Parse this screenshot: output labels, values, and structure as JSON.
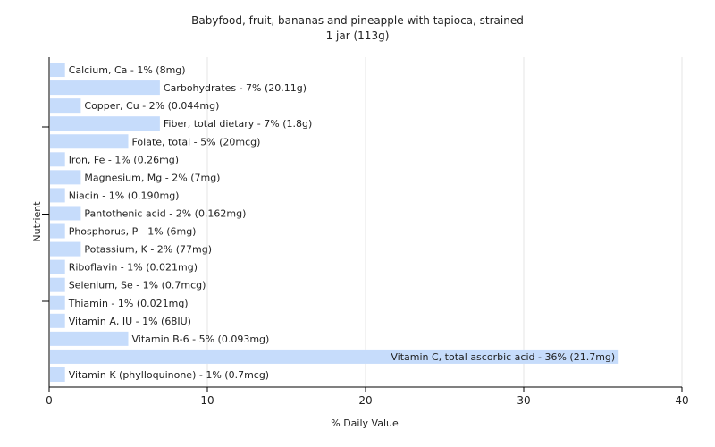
{
  "chart_data": {
    "type": "bar",
    "orientation": "horizontal",
    "title": "Babyfood, fruit, bananas and pineapple with tapioca, strained",
    "subtitle": "1 jar (113g)",
    "xlabel": "% Daily Value",
    "ylabel": "Nutrient",
    "xlim": [
      0,
      40
    ],
    "xticks": [
      "0",
      "10",
      "20",
      "30",
      "40"
    ],
    "grid": true,
    "bar_color": "#c6dcfb",
    "categories": [
      "Calcium, Ca",
      "Carbohydrates",
      "Copper, Cu",
      "Fiber, total dietary",
      "Folate, total",
      "Iron, Fe",
      "Magnesium, Mg",
      "Niacin",
      "Pantothenic acid",
      "Phosphorus, P",
      "Potassium, K",
      "Riboflavin",
      "Selenium, Se",
      "Thiamin",
      "Vitamin A, IU",
      "Vitamin B-6",
      "Vitamin C, total ascorbic acid",
      "Vitamin K (phylloquinone)"
    ],
    "values": [
      1,
      7,
      2,
      7,
      5,
      1,
      2,
      1,
      2,
      1,
      2,
      1,
      1,
      1,
      1,
      5,
      36,
      1
    ],
    "labels": [
      "Calcium, Ca - 1% (8mg)",
      "Carbohydrates - 7% (20.11g)",
      "Copper, Cu - 2% (0.044mg)",
      "Fiber, total dietary - 7% (1.8g)",
      "Folate, total - 5% (20mcg)",
      "Iron, Fe - 1% (0.26mg)",
      "Magnesium, Mg - 2% (7mg)",
      "Niacin - 1% (0.190mg)",
      "Pantothenic acid - 2% (0.162mg)",
      "Phosphorus, P - 1% (6mg)",
      "Potassium, K - 2% (77mg)",
      "Riboflavin - 1% (0.021mg)",
      "Selenium, Se - 1% (0.7mcg)",
      "Thiamin - 1% (0.021mg)",
      "Vitamin A, IU - 1% (68IU)",
      "Vitamin B-6 - 5% (0.093mg)",
      "Vitamin C, total ascorbic acid - 36% (21.7mg)",
      "Vitamin K (phylloquinone) - 1% (0.7mcg)"
    ]
  }
}
